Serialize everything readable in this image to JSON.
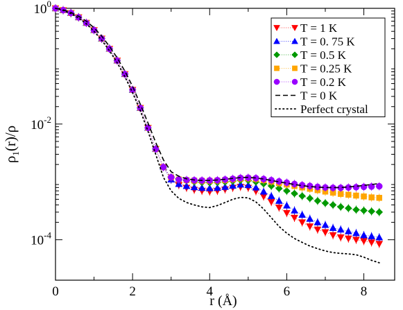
{
  "chart_data": {
    "type": "scatter",
    "xlabel": "r    (Å)",
    "ylabel": "ρ1(r)/ρ",
    "ylabel_main": "ρ",
    "ylabel_sub": "1",
    "ylabel_rest": "(r)/ρ",
    "xlim": [
      0,
      8.8
    ],
    "ylim": [
      2e-05,
      1
    ],
    "yscale": "log",
    "x_ticks": [
      0,
      2,
      4,
      6,
      8
    ],
    "x_tick_labels": [
      "0",
      "2",
      "4",
      "6",
      "8"
    ],
    "y_ticks": [
      1,
      0.01,
      0.0001
    ],
    "y_tick_labels": [
      {
        "base": "10",
        "exp": "0"
      },
      {
        "base": "10",
        "exp": "-2"
      },
      {
        "base": "10",
        "exp": "-4"
      }
    ],
    "legend_position": "top-right",
    "x": [
      0.0,
      0.2,
      0.4,
      0.6,
      0.8,
      1.0,
      1.2,
      1.4,
      1.6,
      1.8,
      2.0,
      2.2,
      2.4,
      2.6,
      2.8,
      3.0,
      3.2,
      3.4,
      3.6,
      3.8,
      4.0,
      4.2,
      4.4,
      4.6,
      4.8,
      5.0,
      5.2,
      5.4,
      5.6,
      5.8,
      6.0,
      6.2,
      6.4,
      6.6,
      6.8,
      7.0,
      7.2,
      7.4,
      7.6,
      7.8,
      8.0,
      8.2,
      8.4
    ],
    "series": [
      {
        "name": "T = 1 K",
        "color": "#ff0000",
        "marker": "triangle-down",
        "values": [
          1,
          0.93,
          0.83,
          0.7,
          0.56,
          0.42,
          0.3,
          0.2,
          0.125,
          0.073,
          0.039,
          0.019,
          0.0086,
          0.0037,
          0.0018,
          0.0011,
          0.00088,
          0.00079,
          0.00073,
          0.0007,
          0.00068,
          0.0007,
          0.00074,
          0.00079,
          0.00082,
          0.00079,
          0.00069,
          0.00056,
          0.00045,
          0.00036,
          0.00029,
          0.00024,
          0.0002,
          0.00017,
          0.00015,
          0.000135,
          0.00012,
          0.00011,
          0.000105,
          0.0001,
          9.5e-05,
          9e-05,
          8.5e-05
        ]
      },
      {
        "name": "T = 0. 75 K",
        "color": "#0000ff",
        "marker": "triangle-up",
        "values": [
          1,
          0.93,
          0.83,
          0.7,
          0.56,
          0.42,
          0.3,
          0.2,
          0.125,
          0.073,
          0.039,
          0.019,
          0.0086,
          0.0037,
          0.0018,
          0.0011,
          0.00092,
          0.00085,
          0.00081,
          0.00079,
          0.00078,
          0.00079,
          0.00082,
          0.00086,
          0.0009,
          0.00088,
          0.0008,
          0.00068,
          0.00057,
          0.00047,
          0.00039,
          0.00032,
          0.00027,
          0.00023,
          0.0002,
          0.00018,
          0.00016,
          0.00015,
          0.00014,
          0.00013,
          0.00012,
          0.000115,
          0.00011
        ]
      },
      {
        "name": "T = 0.5 K",
        "color": "#009900",
        "marker": "diamond",
        "values": [
          1,
          0.93,
          0.83,
          0.7,
          0.56,
          0.42,
          0.3,
          0.2,
          0.125,
          0.073,
          0.039,
          0.019,
          0.0086,
          0.0037,
          0.0018,
          0.0012,
          0.0011,
          0.00105,
          0.001,
          0.00098,
          0.00097,
          0.00098,
          0.001,
          0.00103,
          0.00107,
          0.00106,
          0.001,
          0.00093,
          0.00085,
          0.00077,
          0.0007,
          0.00063,
          0.00057,
          0.00052,
          0.00047,
          0.00043,
          0.0004,
          0.00037,
          0.00035,
          0.00033,
          0.00032,
          0.00031,
          0.0003
        ]
      },
      {
        "name": "T = 0.25 K",
        "color": "#ffa500",
        "marker": "square",
        "values": [
          1,
          0.93,
          0.83,
          0.7,
          0.56,
          0.42,
          0.3,
          0.2,
          0.125,
          0.073,
          0.039,
          0.019,
          0.0086,
          0.0037,
          0.0018,
          0.0012,
          0.0011,
          0.00107,
          0.00105,
          0.00104,
          0.00104,
          0.00105,
          0.00107,
          0.0011,
          0.00114,
          0.00115,
          0.00112,
          0.00107,
          0.00101,
          0.00095,
          0.0009,
          0.00085,
          0.0008,
          0.00076,
          0.00072,
          0.00068,
          0.00065,
          0.00062,
          0.0006,
          0.00058,
          0.00056,
          0.00054,
          0.00053
        ]
      },
      {
        "name": "T = 0.2 K",
        "color": "#9900ff",
        "marker": "circle",
        "values": [
          1,
          0.93,
          0.83,
          0.7,
          0.56,
          0.42,
          0.3,
          0.2,
          0.125,
          0.073,
          0.039,
          0.019,
          0.0086,
          0.0037,
          0.0018,
          0.0012,
          0.0011,
          0.00108,
          0.00107,
          0.00106,
          0.00106,
          0.00107,
          0.0011,
          0.00113,
          0.00117,
          0.00118,
          0.00116,
          0.00112,
          0.00107,
          0.00102,
          0.00097,
          0.00092,
          0.00088,
          0.00085,
          0.00082,
          0.0008,
          0.00079,
          0.00079,
          0.0008,
          0.00081,
          0.00082,
          0.00083,
          0.00084
        ]
      },
      {
        "name": "T = 0 K",
        "color": "#000000",
        "marker": "none",
        "line": "dashed",
        "values": [
          1,
          0.94,
          0.85,
          0.73,
          0.6,
          0.46,
          0.33,
          0.22,
          0.14,
          0.082,
          0.045,
          0.022,
          0.0104,
          0.0048,
          0.0024,
          0.0015,
          0.00125,
          0.00113,
          0.00108,
          0.00106,
          0.00106,
          0.00108,
          0.00111,
          0.00115,
          0.00119,
          0.0012,
          0.00117,
          0.00112,
          0.00106,
          0.001,
          0.00095,
          0.0009,
          0.00086,
          0.00083,
          0.00081,
          0.0008,
          0.0008,
          0.0008,
          0.00082,
          0.00084,
          0.00087,
          0.0009,
          0.00094
        ]
      },
      {
        "name": "Perfect crystal",
        "color": "#000000",
        "marker": "none",
        "line": "dotted",
        "values": [
          1,
          0.92,
          0.81,
          0.68,
          0.54,
          0.4,
          0.28,
          0.185,
          0.115,
          0.066,
          0.035,
          0.017,
          0.0075,
          0.003,
          0.0012,
          0.0007,
          0.00052,
          0.00044,
          0.0004,
          0.00037,
          0.00036,
          0.00039,
          0.00044,
          0.0005,
          0.00054,
          0.00053,
          0.00045,
          0.00034,
          0.00024,
          0.00017,
          0.00013,
          0.000105,
          9e-05,
          7.8e-05,
          7e-05,
          6.4e-05,
          6e-05,
          5.8e-05,
          5.7e-05,
          5.5e-05,
          5e-05,
          4.4e-05,
          4e-05
        ]
      }
    ]
  }
}
